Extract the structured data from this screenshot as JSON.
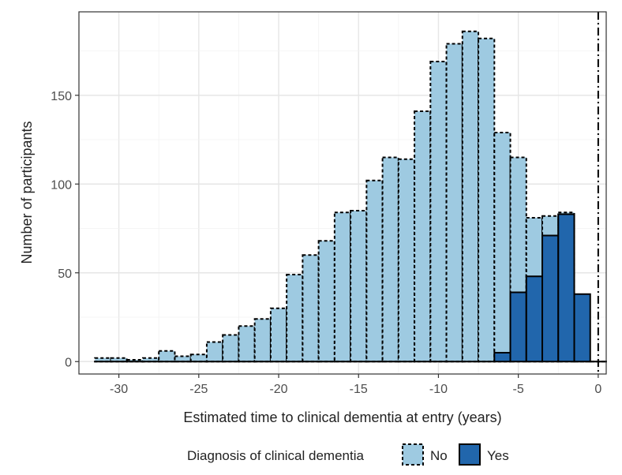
{
  "chart_data": {
    "type": "bar",
    "xlabel": "Estimated time to clinical dementia at entry (years)",
    "ylabel": "Number of participants",
    "xlim": [
      -32.5,
      0.5
    ],
    "ylim": [
      -7,
      197
    ],
    "x_ticks": [
      -30,
      -25,
      -20,
      -15,
      -10,
      -5,
      0
    ],
    "y_ticks": [
      0,
      50,
      100,
      150
    ],
    "bin_width": 1,
    "grid": true,
    "vline": {
      "x": 0,
      "style": "dash-dot"
    },
    "legend": {
      "title": "Diagnosis of clinical dementia",
      "position": "bottom"
    },
    "colors": {
      "no": "#9ecae1",
      "yes": "#2166ac",
      "outline": "#000000"
    },
    "series": [
      {
        "name": "No",
        "x": [
          -31,
          -30,
          -29,
          -28,
          -27,
          -26,
          -25,
          -24,
          -23,
          -22,
          -21,
          -20,
          -19,
          -18,
          -17,
          -16,
          -15,
          -14,
          -13,
          -12,
          -11,
          -10,
          -9,
          -8,
          -7,
          -6,
          -5,
          -4,
          -3,
          -2,
          -1,
          0
        ],
        "values": [
          2,
          2,
          1,
          2,
          6,
          3,
          4,
          11,
          15,
          20,
          24,
          30,
          49,
          60,
          68,
          84,
          85,
          102,
          115,
          114,
          141,
          169,
          179,
          186,
          182,
          129,
          115,
          81,
          82,
          84,
          0,
          0
        ]
      },
      {
        "name": "Yes",
        "x": [
          -31,
          -30,
          -29,
          -28,
          -27,
          -26,
          -25,
          -24,
          -23,
          -22,
          -21,
          -20,
          -19,
          -18,
          -17,
          -16,
          -15,
          -14,
          -13,
          -12,
          -11,
          -10,
          -9,
          -8,
          -7,
          -6,
          -5,
          -4,
          -3,
          -2,
          -1,
          0
        ],
        "values": [
          0,
          0,
          0,
          0,
          0,
          0,
          0,
          0,
          0,
          0,
          0,
          0,
          0,
          0,
          0,
          0,
          0,
          0,
          0,
          0,
          0,
          0,
          0,
          0,
          0,
          5,
          39,
          48,
          71,
          83,
          38,
          0
        ]
      }
    ]
  }
}
